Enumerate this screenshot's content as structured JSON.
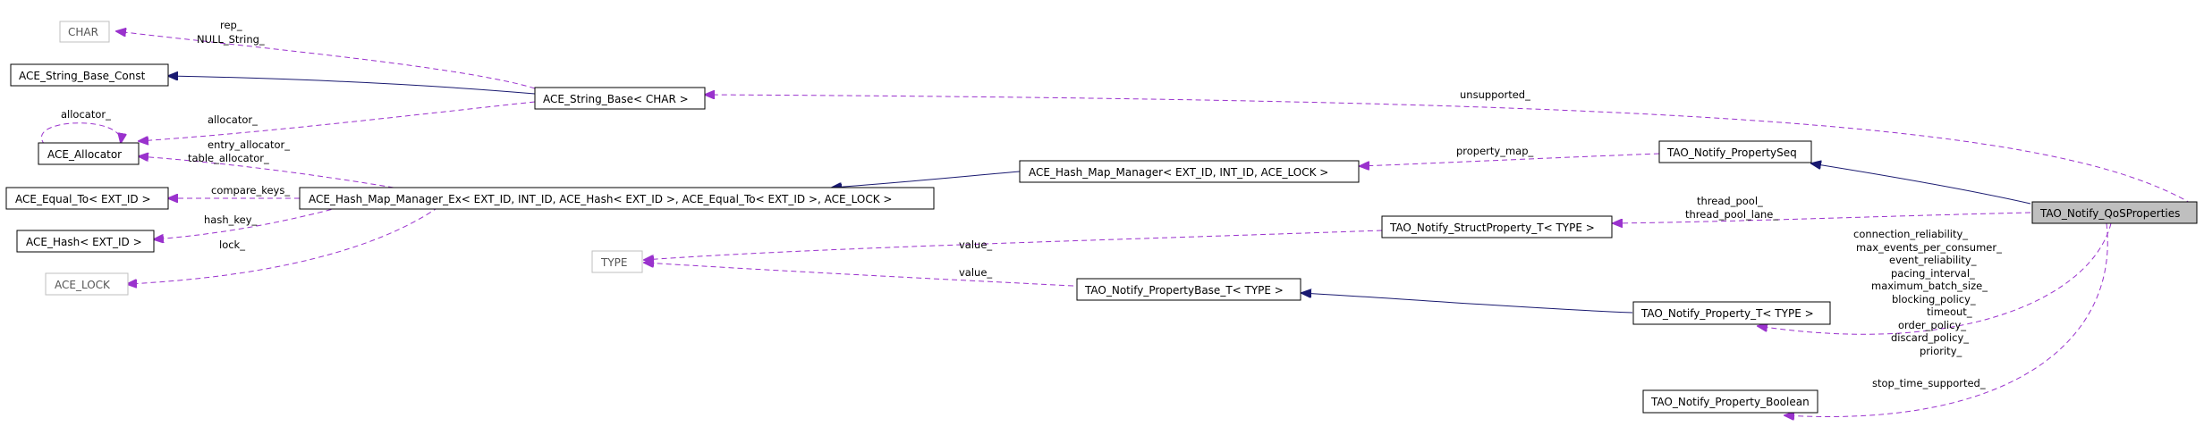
{
  "classes": {
    "char": "CHAR",
    "string_base_const": "ACE_String_Base_Const",
    "allocator": "ACE_Allocator",
    "equal_to": "ACE_Equal_To< EXT_ID >",
    "hash": "ACE_Hash< EXT_ID >",
    "lock": "ACE_LOCK",
    "type": "TYPE",
    "string_base": "ACE_String_Base< CHAR >",
    "hash_map_manager_ex": "ACE_Hash_Map_Manager_Ex< EXT_ID, INT_ID, ACE_Hash< EXT_ID >, ACE_Equal_To< EXT_ID >, ACE_LOCK >",
    "hash_map_manager": "ACE_Hash_Map_Manager< EXT_ID, INT_ID, ACE_LOCK >",
    "property_base_t": "TAO_Notify_PropertyBase_T< TYPE >",
    "property_seq": "TAO_Notify_PropertySeq",
    "struct_property_t": "TAO_Notify_StructProperty_T< TYPE >",
    "property_t": "TAO_Notify_Property_T< TYPE >",
    "property_boolean": "TAO_Notify_Property_Boolean",
    "qos_properties": "TAO_Notify_QoSProperties"
  },
  "edge_labels": {
    "rep": "rep_",
    "null_string": "NULL_String_",
    "allocator_self": "allocator_",
    "allocator": "allocator_",
    "entry_allocator": "entry_allocator_",
    "table_allocator": "table_allocator_",
    "compare_keys": "compare_keys_",
    "hash_key": "hash_key_",
    "lock": "lock_",
    "value_struct": "value_",
    "value_base": "value_",
    "unsupported": "unsupported_",
    "property_map": "property_map_",
    "thread_pool": "thread_pool_",
    "thread_pool_lane": "thread_pool_lane_",
    "connection_reliability": "connection_reliability_",
    "max_events_per_consumer": "max_events_per_consumer_",
    "event_reliability": "event_reliability_",
    "pacing_interval": "pacing_interval_",
    "maximum_batch_size": "maximum_batch_size_",
    "blocking_policy": "blocking_policy_",
    "timeout": "timeout_",
    "order_policy": "order_policy_",
    "discard_policy": "discard_policy_",
    "priority": "priority_",
    "stop_time_supported": "stop_time_supported_"
  },
  "colors": {
    "usage_edge": "#9a32cd",
    "inheritance_edge": "#191970",
    "focus_fill": "#bfbfbf",
    "template_border": "#bfbfbf"
  }
}
